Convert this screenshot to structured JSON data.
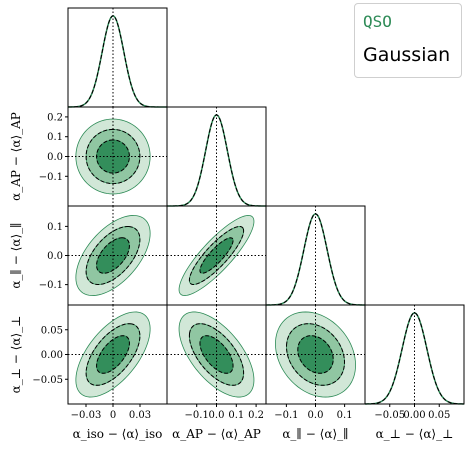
{
  "colors": {
    "qso": "#2e8b57",
    "fill_outer": "#cfe6d5",
    "fill_mid": "#8cc49f",
    "fill_inner": "#2e8b57",
    "gaussian": "#000000"
  },
  "legend": {
    "qso": "QSO",
    "gaussian": "Gaussian"
  },
  "chart_data": {
    "type": "corner",
    "parameters": [
      {
        "key": "iso",
        "label": "α_iso − ⟨α⟩_iso",
        "range": [
          -0.05,
          0.06
        ],
        "ticks": [
          -0.03,
          0,
          0.03
        ],
        "tick_labels": [
          "−0.03",
          "0",
          "0.03"
        ],
        "sigma": 0.012
      },
      {
        "key": "AP",
        "label": "α_AP − ⟨α⟩_AP",
        "range": [
          -0.25,
          0.25
        ],
        "ticks": [
          -0.1,
          0,
          0.1,
          0.2
        ],
        "tick_labels": [
          "−0.1",
          "0.0",
          "0.1",
          "0.2"
        ],
        "sigma": 0.055
      },
      {
        "key": "par",
        "label": "α_∥ − ⟨α⟩_∥",
        "range": [
          -0.17,
          0.17
        ],
        "ticks": [
          -0.1,
          0,
          0.1
        ],
        "tick_labels": [
          "−0.1",
          "0.0",
          "0.1"
        ],
        "sigma": 0.04
      },
      {
        "key": "perp",
        "label": "α_⊥ − ⟨α⟩_⊥",
        "range": [
          -0.1,
          0.1
        ],
        "ticks": [
          -0.05,
          0,
          0.05
        ],
        "tick_labels": [
          "−0.05",
          "0.00",
          "0.05"
        ],
        "sigma": 0.025
      }
    ],
    "y_tick_labels": {
      "AP": [
        "−0.1",
        "0.0",
        "0.1",
        "0.2"
      ],
      "par": [
        "−0.1",
        "0.0",
        "0.1"
      ],
      "perp": [
        "−0.05",
        "0.00",
        "0.05"
      ]
    },
    "correlations": {
      "1_0": 0.0,
      "2_0": 0.55,
      "2_1": 0.85,
      "3_0": 0.6,
      "3_1": -0.6,
      "3_2": -0.25
    },
    "contour_levels_sigma": [
      1,
      2,
      3
    ],
    "series": [
      {
        "name": "QSO",
        "style": "filled contours"
      },
      {
        "name": "Gaussian",
        "style": "dashed black"
      }
    ]
  }
}
